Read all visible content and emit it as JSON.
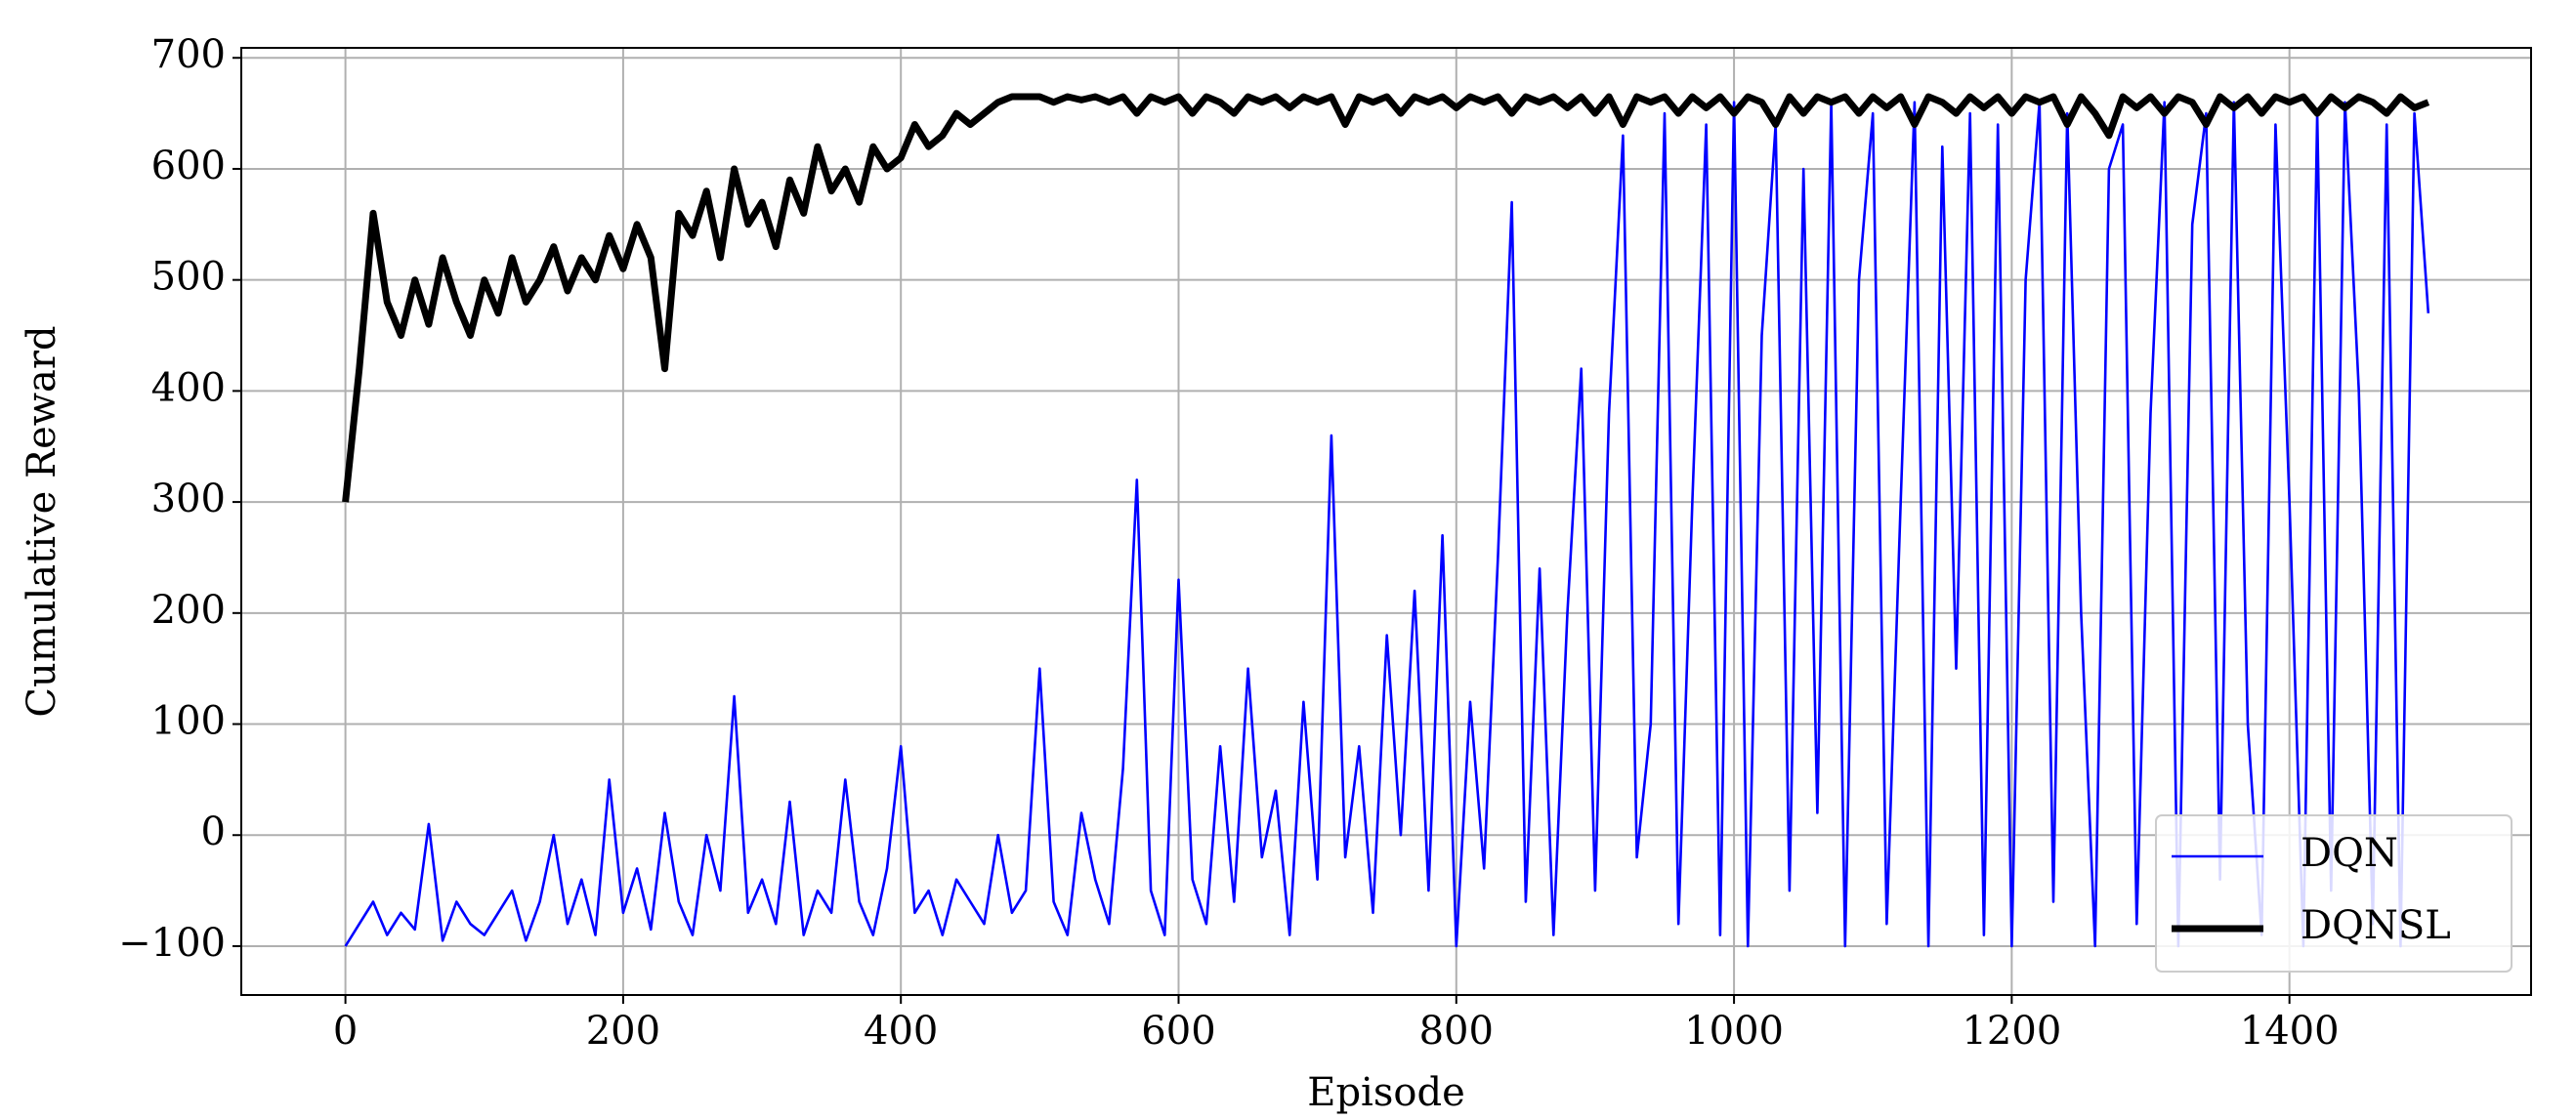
{
  "chart_data": {
    "type": "line",
    "xlabel": "Episode",
    "ylabel": "Cumulative Reward",
    "x": [
      0,
      10,
      20,
      30,
      40,
      50,
      60,
      70,
      80,
      90,
      100,
      110,
      120,
      130,
      140,
      150,
      160,
      170,
      180,
      190,
      200,
      210,
      220,
      230,
      240,
      250,
      260,
      270,
      280,
      290,
      300,
      310,
      320,
      330,
      340,
      350,
      360,
      370,
      380,
      390,
      400,
      410,
      420,
      430,
      440,
      450,
      460,
      470,
      480,
      490,
      500,
      510,
      520,
      530,
      540,
      550,
      560,
      570,
      580,
      590,
      600,
      610,
      620,
      630,
      640,
      650,
      660,
      670,
      680,
      690,
      700,
      710,
      720,
      730,
      740,
      750,
      760,
      770,
      780,
      790,
      800,
      810,
      820,
      830,
      840,
      850,
      860,
      870,
      880,
      890,
      900,
      910,
      920,
      930,
      940,
      950,
      960,
      970,
      980,
      990,
      1000,
      1010,
      1020,
      1030,
      1040,
      1050,
      1060,
      1070,
      1080,
      1090,
      1100,
      1110,
      1120,
      1130,
      1140,
      1150,
      1160,
      1170,
      1180,
      1190,
      1200,
      1210,
      1220,
      1230,
      1240,
      1250,
      1260,
      1270,
      1280,
      1290,
      1300,
      1310,
      1320,
      1330,
      1340,
      1350,
      1360,
      1370,
      1380,
      1390,
      1400,
      1410,
      1420,
      1430,
      1440,
      1450,
      1460,
      1470,
      1480,
      1490,
      1500
    ],
    "series": [
      {
        "name": "DQN",
        "color": "#0000ff",
        "values": [
          -100,
          -80,
          -60,
          -90,
          -70,
          -85,
          10,
          -95,
          -60,
          -80,
          -90,
          -70,
          -50,
          -95,
          -60,
          0,
          -80,
          -40,
          -90,
          50,
          -70,
          -30,
          -85,
          20,
          -60,
          -90,
          0,
          -50,
          125,
          -70,
          -40,
          -80,
          30,
          -90,
          -50,
          -70,
          50,
          -60,
          -90,
          -30,
          80,
          -70,
          -50,
          -90,
          -40,
          -60,
          -80,
          0,
          -70,
          -50,
          150,
          -60,
          -90,
          20,
          -40,
          -80,
          60,
          320,
          -50,
          -90,
          230,
          -40,
          -80,
          80,
          -60,
          150,
          -20,
          40,
          -90,
          120,
          -40,
          360,
          -20,
          80,
          -70,
          180,
          0,
          220,
          -50,
          270,
          -100,
          120,
          -30,
          250,
          570,
          -60,
          240,
          -90,
          200,
          420,
          -50,
          380,
          630,
          -20,
          100,
          650,
          -80,
          300,
          640,
          -90,
          660,
          -100,
          450,
          640,
          -50,
          600,
          20,
          660,
          -100,
          500,
          650,
          -80,
          300,
          660,
          -100,
          620,
          150,
          650,
          -90,
          640,
          -100,
          500,
          660,
          -60,
          650,
          200,
          -100,
          600,
          640,
          -80,
          380,
          660,
          -100,
          550,
          650,
          -40,
          660,
          100,
          -90,
          640,
          300,
          -100,
          650,
          -50,
          660,
          400,
          -80,
          640,
          -100,
          650,
          470
        ]
      },
      {
        "name": "DQNSL",
        "color": "#000000",
        "values": [
          300,
          420,
          560,
          480,
          450,
          500,
          460,
          520,
          480,
          450,
          500,
          470,
          520,
          480,
          500,
          530,
          490,
          520,
          500,
          540,
          510,
          550,
          520,
          420,
          560,
          540,
          580,
          520,
          600,
          550,
          570,
          530,
          590,
          560,
          620,
          580,
          600,
          570,
          620,
          600,
          610,
          640,
          620,
          630,
          650,
          640,
          650,
          660,
          665,
          665,
          665,
          660,
          665,
          662,
          665,
          660,
          665,
          650,
          665,
          660,
          665,
          650,
          665,
          660,
          650,
          665,
          660,
          665,
          655,
          665,
          660,
          665,
          640,
          665,
          660,
          665,
          650,
          665,
          660,
          665,
          655,
          665,
          660,
          665,
          650,
          665,
          660,
          665,
          655,
          665,
          650,
          665,
          640,
          665,
          660,
          665,
          650,
          665,
          655,
          665,
          650,
          665,
          660,
          640,
          665,
          650,
          665,
          660,
          665,
          650,
          665,
          655,
          665,
          640,
          665,
          660,
          650,
          665,
          655,
          665,
          650,
          665,
          660,
          665,
          640,
          665,
          650,
          630,
          665,
          655,
          665,
          650,
          665,
          660,
          640,
          665,
          655,
          665,
          650,
          665,
          660,
          665,
          650,
          665,
          655,
          665,
          660,
          650,
          665,
          655,
          660
        ]
      }
    ],
    "xlim": [
      -75,
      1574
    ],
    "ylim": [
      -144,
      709
    ],
    "xticks": [
      0,
      200,
      400,
      600,
      800,
      1000,
      1200,
      1400
    ],
    "yticks": [
      {
        "value": -100,
        "label": "−100"
      },
      0,
      100,
      200,
      300,
      400,
      500,
      600,
      700
    ],
    "grid": true,
    "legend": "lower right"
  }
}
